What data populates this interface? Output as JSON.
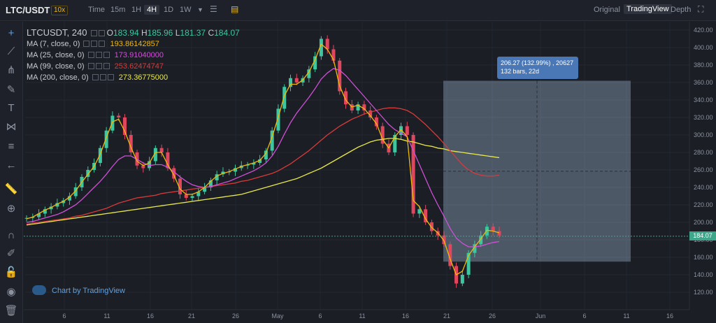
{
  "topbar": {
    "pair": "LTC/USDT",
    "leverage": "10x",
    "intervals": [
      {
        "label": "Time",
        "active": false
      },
      {
        "label": "15m",
        "active": false
      },
      {
        "label": "1H",
        "active": false
      },
      {
        "label": "4H",
        "active": true
      },
      {
        "label": "1D",
        "active": false
      },
      {
        "label": "1W",
        "active": false
      }
    ],
    "views": [
      {
        "label": "Original",
        "active": false
      },
      {
        "label": "TradingView",
        "active": true
      },
      {
        "label": "Depth",
        "active": false
      }
    ],
    "icons": [
      "chevron-down-icon",
      "indicators-icon",
      "templates-icon",
      "fullscreen-icon"
    ]
  },
  "sidebar": {
    "tools": [
      "crosshair-icon",
      "trendline-icon",
      "pitchfork-icon",
      "brush-icon",
      "text-icon",
      "pattern-icon",
      "fib-icon",
      "back-arrow-icon",
      "ruler-icon",
      "zoom-in-icon",
      "magnet-icon",
      "lock-drawing-icon",
      "lock-icon",
      "eye-icon",
      "trash-icon"
    ]
  },
  "legend": {
    "symbol": "LTCUSDT, 240",
    "open_label": "O",
    "open": "183.94",
    "high_label": "H",
    "high": "185.96",
    "low_label": "L",
    "low": "181.37",
    "close_label": "C",
    "close": "184.07",
    "ma": [
      {
        "label": "MA (7, close, 0)",
        "value": "193.86142857",
        "color": "#f0b90b"
      },
      {
        "label": "MA (25, close, 0)",
        "value": "173.91040000",
        "color": "#d04fd8"
      },
      {
        "label": "MA (99, close, 0)",
        "value": "253.62474747",
        "color": "#d83a3a"
      },
      {
        "label": "MA (200, close, 0)",
        "value": "273.36775000",
        "color": "#e8e84a"
      }
    ]
  },
  "measure": {
    "line1": "206.27 (132.99%) , 20627",
    "line2": "132 bars, 22d"
  },
  "watermark": "Chart by TradingView",
  "price_axis": {
    "ticks": [
      "420.00",
      "400.00",
      "380.00",
      "360.00",
      "340.00",
      "320.00",
      "300.00",
      "280.00",
      "260.00",
      "240.00",
      "220.00",
      "200.00",
      "180.00",
      "160.00",
      "140.00",
      "120.00"
    ],
    "current": "184.07"
  },
  "time_axis": {
    "ticks": [
      "6",
      "11",
      "16",
      "21",
      "26",
      "May",
      "6",
      "11",
      "16",
      "21",
      "26",
      "Jun",
      "6",
      "11",
      "16"
    ]
  },
  "chart_data": {
    "type": "candlestick",
    "symbol": "LTCUSDT",
    "interval": "4H",
    "ylim": [
      110,
      425
    ],
    "price_samples": [
      205,
      206,
      210,
      215,
      218,
      222,
      225,
      230,
      240,
      252,
      260,
      268,
      285,
      305,
      322,
      320,
      300,
      280,
      265,
      262,
      270,
      285,
      280,
      262,
      250,
      232,
      228,
      230,
      235,
      240,
      248,
      255,
      258,
      258,
      262,
      265,
      266,
      268,
      272,
      282,
      305,
      330,
      355,
      365,
      360,
      365,
      375,
      390,
      410,
      398,
      385,
      350,
      335,
      328,
      335,
      328,
      320,
      310,
      290,
      280,
      300,
      310,
      300,
      210,
      215,
      200,
      190,
      185,
      175,
      150,
      130,
      140,
      165,
      175,
      185,
      195,
      190,
      185
    ],
    "ma7": [
      204,
      206,
      210,
      214,
      217,
      221,
      224,
      229,
      236,
      246,
      255,
      264,
      278,
      297,
      315,
      318,
      304,
      286,
      270,
      265,
      268,
      280,
      280,
      266,
      254,
      238,
      232,
      232,
      235,
      240,
      247,
      253,
      256,
      258,
      261,
      264,
      266,
      268,
      271,
      279,
      298,
      320,
      345,
      358,
      358,
      363,
      372,
      386,
      404,
      398,
      386,
      356,
      340,
      332,
      334,
      330,
      322,
      313,
      295,
      285,
      298,
      306,
      298,
      225,
      218,
      204,
      194,
      188,
      179,
      158,
      140,
      144,
      162,
      172,
      181,
      191,
      190,
      188
    ],
    "ma25": [
      200,
      201,
      203,
      205,
      207,
      209,
      212,
      216,
      220,
      226,
      233,
      240,
      247,
      255,
      264,
      272,
      276,
      276,
      272,
      268,
      265,
      266,
      266,
      263,
      258,
      252,
      247,
      243,
      241,
      240,
      241,
      243,
      245,
      247,
      250,
      253,
      256,
      259,
      263,
      268,
      276,
      287,
      301,
      314,
      325,
      334,
      343,
      353,
      364,
      371,
      376,
      374,
      368,
      360,
      352,
      344,
      336,
      328,
      320,
      312,
      306,
      302,
      298,
      282,
      266,
      250,
      234,
      220,
      207,
      193,
      182,
      176,
      172,
      172,
      173,
      175,
      177,
      178
    ],
    "ma99": [
      198,
      199,
      200,
      201,
      202,
      203,
      204,
      205,
      207,
      208,
      210,
      212,
      214,
      216,
      219,
      222,
      224,
      226,
      228,
      229,
      230,
      231,
      233,
      234,
      235,
      236,
      237,
      238,
      239,
      240,
      241,
      242,
      243,
      244,
      245,
      247,
      248,
      250,
      252,
      254,
      256,
      259,
      263,
      267,
      272,
      277,
      282,
      288,
      294,
      300,
      305,
      310,
      314,
      318,
      321,
      324,
      326,
      328,
      330,
      331,
      331,
      330,
      328,
      324,
      318,
      312,
      305,
      298,
      290,
      282,
      274,
      266,
      260,
      256,
      254,
      253,
      253,
      254
    ],
    "ma200": [
      197,
      198,
      199,
      200,
      201,
      202,
      203,
      204,
      205,
      206,
      207,
      208,
      209,
      210,
      211,
      212,
      213,
      214,
      215,
      216,
      217,
      218,
      219,
      220,
      221,
      222,
      223,
      224,
      225,
      226,
      227,
      228,
      229,
      230,
      231,
      232,
      234,
      236,
      238,
      240,
      242,
      244,
      246,
      248,
      250,
      253,
      256,
      259,
      262,
      266,
      270,
      274,
      278,
      282,
      286,
      289,
      292,
      294,
      295,
      296,
      296,
      295,
      293,
      292,
      290,
      288,
      287,
      285,
      284,
      282,
      281,
      280,
      279,
      278,
      277,
      276,
      275,
      274
    ],
    "current_price": 184.07,
    "measure_box": {
      "y_top": 362,
      "y_bottom": 155
    }
  }
}
